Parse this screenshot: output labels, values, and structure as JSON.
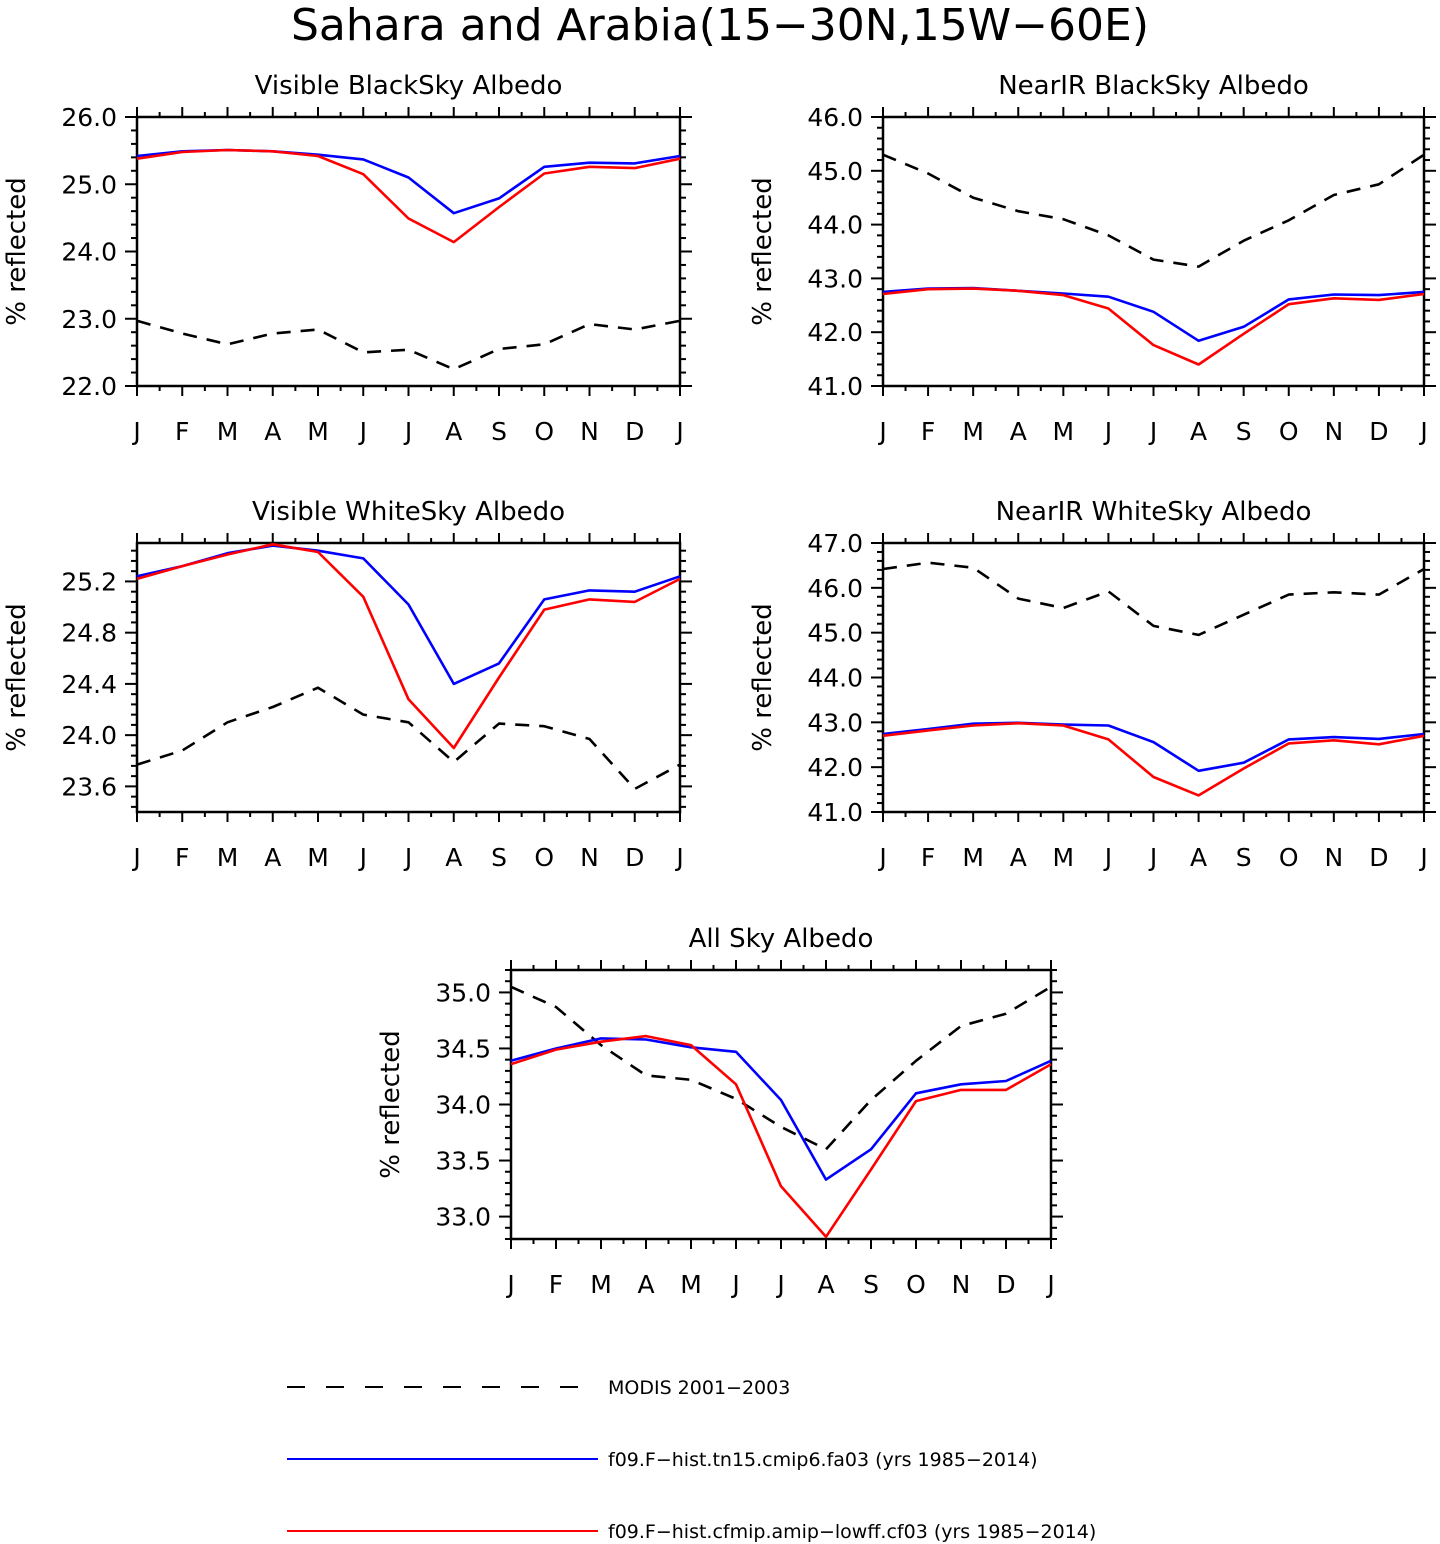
{
  "title": "Sahara and Arabia(15−30N,15W−60E)",
  "chart_data": [
    {
      "type": "line",
      "title": "Visible BlackSky Albedo",
      "ylabel": "% reflected",
      "xlabel": "",
      "categories": [
        "J",
        "F",
        "M",
        "A",
        "M",
        "J",
        "J",
        "A",
        "S",
        "O",
        "N",
        "D",
        "J"
      ],
      "ylim": [
        22.0,
        26.0
      ],
      "yticks": [
        "22.0",
        "23.0",
        "24.0",
        "25.0",
        "26.0"
      ],
      "series": [
        {
          "name": "MODIS 2001−2003",
          "values": [
            22.97,
            22.78,
            22.62,
            22.78,
            22.84,
            22.5,
            22.54,
            22.25,
            22.55,
            22.62,
            22.92,
            22.84,
            22.97
          ]
        },
        {
          "name": "f09.F−hist.tn15.cmip6.fa03 (yrs 1985−2014)",
          "values": [
            25.42,
            25.49,
            25.51,
            25.49,
            25.44,
            25.37,
            25.1,
            24.57,
            24.79,
            25.26,
            25.32,
            25.31,
            25.42
          ]
        },
        {
          "name": "f09.F−hist.cfmip.amip−lowff.cf03 (yrs 1985−2014)",
          "values": [
            25.38,
            25.48,
            25.51,
            25.49,
            25.42,
            25.15,
            24.49,
            24.14,
            24.66,
            25.16,
            25.26,
            25.24,
            25.38
          ]
        }
      ]
    },
    {
      "type": "line",
      "title": "NearIR BlackSky Albedo",
      "ylabel": "% reflected",
      "xlabel": "",
      "categories": [
        "J",
        "F",
        "M",
        "A",
        "M",
        "J",
        "J",
        "A",
        "S",
        "O",
        "N",
        "D",
        "J"
      ],
      "ylim": [
        41.0,
        46.0
      ],
      "yticks": [
        "41.0",
        "42.0",
        "43.0",
        "44.0",
        "45.0",
        "46.0"
      ],
      "series": [
        {
          "name": "MODIS 2001−2003",
          "values": [
            45.3,
            44.95,
            44.5,
            44.25,
            44.1,
            43.8,
            43.35,
            43.22,
            43.7,
            44.08,
            44.55,
            44.75,
            45.3
          ]
        },
        {
          "name": "f09.F−hist.tn15.cmip6.fa03 (yrs 1985−2014)",
          "values": [
            42.75,
            42.81,
            42.82,
            42.77,
            42.72,
            42.66,
            42.38,
            41.84,
            42.1,
            42.61,
            42.7,
            42.69,
            42.75
          ]
        },
        {
          "name": "f09.F−hist.cfmip.amip−lowff.cf03 (yrs 1985−2014)",
          "values": [
            42.71,
            42.8,
            42.81,
            42.77,
            42.69,
            42.44,
            41.76,
            41.4,
            41.97,
            42.52,
            42.63,
            42.6,
            42.71
          ]
        }
      ]
    },
    {
      "type": "line",
      "title": "Visible WhiteSky Albedo",
      "ylabel": "% reflected",
      "xlabel": "",
      "categories": [
        "J",
        "F",
        "M",
        "A",
        "M",
        "J",
        "J",
        "A",
        "S",
        "O",
        "N",
        "D",
        "J"
      ],
      "ylim": [
        23.4,
        25.5
      ],
      "yticks": [
        "23.6",
        "24.0",
        "24.4",
        "24.8",
        "25.2"
      ],
      "series": [
        {
          "name": "MODIS 2001−2003",
          "values": [
            23.77,
            23.88,
            24.1,
            24.22,
            24.37,
            24.16,
            24.1,
            23.79,
            24.09,
            24.07,
            23.97,
            23.58,
            23.77
          ]
        },
        {
          "name": "f09.F−hist.tn15.cmip6.fa03 (yrs 1985−2014)",
          "values": [
            25.24,
            25.32,
            25.42,
            25.48,
            25.44,
            25.38,
            25.02,
            24.4,
            24.56,
            25.06,
            25.13,
            25.12,
            25.24
          ]
        },
        {
          "name": "f09.F−hist.cfmip.amip−lowff.cf03 (yrs 1985−2014)",
          "values": [
            25.22,
            25.32,
            25.41,
            25.49,
            25.43,
            25.08,
            24.28,
            23.9,
            24.45,
            24.98,
            25.06,
            25.04,
            25.22
          ]
        }
      ]
    },
    {
      "type": "line",
      "title": "NearIR WhiteSky Albedo",
      "ylabel": "% reflected",
      "xlabel": "",
      "categories": [
        "J",
        "F",
        "M",
        "A",
        "M",
        "J",
        "J",
        "A",
        "S",
        "O",
        "N",
        "D",
        "J"
      ],
      "ylim": [
        41.0,
        47.0
      ],
      "yticks": [
        "41.0",
        "42.0",
        "43.0",
        "44.0",
        "45.0",
        "46.0",
        "47.0"
      ],
      "series": [
        {
          "name": "MODIS 2001−2003",
          "values": [
            46.42,
            46.56,
            46.45,
            45.76,
            45.55,
            45.92,
            45.15,
            44.95,
            45.4,
            45.85,
            45.9,
            45.85,
            46.42
          ]
        },
        {
          "name": "f09.F−hist.tn15.cmip6.fa03 (yrs 1985−2014)",
          "values": [
            42.74,
            42.85,
            42.97,
            42.99,
            42.95,
            42.93,
            42.56,
            41.92,
            42.1,
            42.62,
            42.67,
            42.63,
            42.74
          ]
        },
        {
          "name": "f09.F−hist.cfmip.amip−lowff.cf03 (yrs 1985−2014)",
          "values": [
            42.7,
            42.82,
            42.93,
            42.98,
            42.93,
            42.62,
            41.78,
            41.37,
            41.97,
            42.53,
            42.6,
            42.51,
            42.7
          ]
        }
      ]
    },
    {
      "type": "line",
      "title": "All Sky Albedo",
      "ylabel": "% reflected",
      "xlabel": "",
      "categories": [
        "J",
        "F",
        "M",
        "A",
        "M",
        "J",
        "J",
        "A",
        "S",
        "O",
        "N",
        "D",
        "J"
      ],
      "ylim": [
        32.8,
        35.2
      ],
      "yticks": [
        "33.0",
        "33.5",
        "34.0",
        "34.5",
        "35.0"
      ],
      "series": [
        {
          "name": "MODIS 2001−2003",
          "values": [
            35.05,
            34.87,
            34.53,
            34.26,
            34.22,
            34.05,
            33.8,
            33.6,
            34.04,
            34.39,
            34.7,
            34.81,
            35.05
          ]
        },
        {
          "name": "f09.F−hist.tn15.cmip6.fa03 (yrs 1985−2014)",
          "values": [
            34.39,
            34.5,
            34.59,
            34.58,
            34.51,
            34.47,
            34.04,
            33.33,
            33.6,
            34.1,
            34.18,
            34.21,
            34.39
          ]
        },
        {
          "name": "f09.F−hist.cfmip.amip−lowff.cf03 (yrs 1985−2014)",
          "values": [
            34.36,
            34.49,
            34.56,
            34.61,
            34.53,
            34.18,
            33.27,
            32.82,
            33.42,
            34.03,
            34.13,
            34.13,
            34.36
          ]
        }
      ]
    }
  ],
  "legend": {
    "placement": "bottom",
    "items": [
      {
        "label": "MODIS 2001−2003",
        "color": "#000000",
        "dash": "dashed"
      },
      {
        "label": "f09.F−hist.tn15.cmip6.fa03 (yrs 1985−2014)",
        "color": "#0000ff",
        "dash": "solid"
      },
      {
        "label": "f09.F−hist.cfmip.amip−lowff.cf03 (yrs 1985−2014)",
        "color": "#ff0000",
        "dash": "solid"
      }
    ]
  },
  "colors": {
    "modis": "#000000",
    "cmip6": "#0000ff",
    "cfmip": "#ff0000"
  }
}
